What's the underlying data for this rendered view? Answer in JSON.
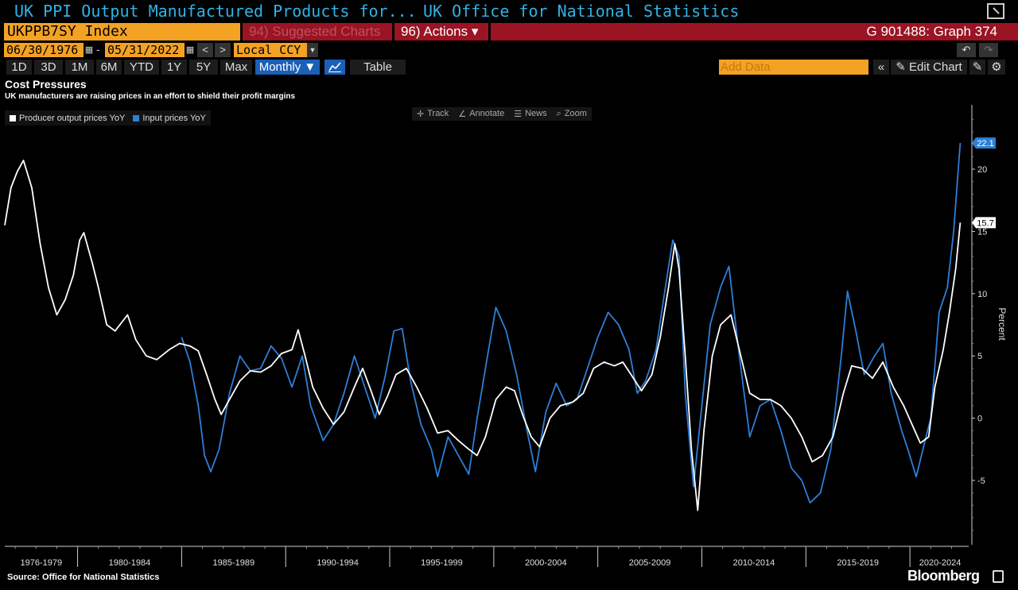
{
  "window": {
    "title_left": "UK PPI Output Manufactured Products for...",
    "title_right": "UK Office for National Statistics"
  },
  "command_bar": {
    "ticker": "UKPPB7SY Index",
    "suggested_charts": "94) Suggested Charts",
    "actions": "96) Actions ▾",
    "graph_id": "G 901488: Graph 374"
  },
  "date_bar": {
    "start_date": "06/30/1976",
    "end_date": "05/31/2022",
    "separator": "-",
    "currency": "Local CCY",
    "prev": "<",
    "next": ">"
  },
  "period_bar": {
    "periods": [
      "1D",
      "3D",
      "1M",
      "6M",
      "YTD",
      "1Y",
      "5Y",
      "Max"
    ],
    "frequency": "Monthly ▼",
    "table": "Table",
    "add_data_placeholder": "Add Data",
    "collapse": "«",
    "edit_chart": "✎ Edit Chart"
  },
  "chart_header": {
    "title": "Cost Pressures",
    "subtitle": "UK manufacturers are raising prices in an effort to shield their profit margins"
  },
  "legend": [
    {
      "label": "Producer output prices YoY",
      "color": "#ffffff"
    },
    {
      "label": "Input prices YoY",
      "color": "#2d7fd6"
    }
  ],
  "tools": [
    {
      "icon": "✛",
      "label": "Track"
    },
    {
      "icon": "∠",
      "label": "Annotate"
    },
    {
      "icon": "☰",
      "label": "News"
    },
    {
      "icon": "⌕",
      "label": "Zoom"
    }
  ],
  "footer": {
    "source": "Source: Office for National Statistics",
    "brand": "Bloomberg"
  },
  "chart_data": {
    "type": "line",
    "title": "Cost Pressures",
    "subtitle": "UK manufacturers are raising prices in an effort to shield their profit margins",
    "ylabel": "Percent",
    "ylim": [
      -10,
      25
    ],
    "xlim": [
      1976.5,
      2022.9
    ],
    "yticks": [
      -5,
      0,
      5,
      10,
      15,
      20
    ],
    "x_categories": [
      "1976-1979",
      "1980-1984",
      "1985-1989",
      "1990-1994",
      "1995-1999",
      "2000-2004",
      "2005-2009",
      "2010-2014",
      "2015-2019",
      "2020-2024"
    ],
    "legend_position": "top-left",
    "last_value_labels": [
      {
        "series": "Input prices YoY",
        "value": "22.1"
      },
      {
        "series": "Producer output prices YoY",
        "value": "15.7"
      }
    ],
    "series": [
      {
        "name": "Producer output prices YoY",
        "color": "#ffffff",
        "points": [
          [
            1976.5,
            15.5
          ],
          [
            1976.8,
            18.5
          ],
          [
            1977.1,
            19.8
          ],
          [
            1977.4,
            20.7
          ],
          [
            1977.8,
            18.5
          ],
          [
            1978.2,
            14
          ],
          [
            1978.6,
            10.5
          ],
          [
            1979.0,
            8.3
          ],
          [
            1979.4,
            9.5
          ],
          [
            1979.8,
            11.5
          ],
          [
            1980.1,
            14.3
          ],
          [
            1980.3,
            14.9
          ],
          [
            1980.7,
            12.5
          ],
          [
            1981.0,
            10.5
          ],
          [
            1981.4,
            7.5
          ],
          [
            1981.8,
            7.0
          ],
          [
            1982.4,
            8.3
          ],
          [
            1982.8,
            6.3
          ],
          [
            1983.3,
            5.0
          ],
          [
            1983.8,
            4.7
          ],
          [
            1984.4,
            5.5
          ],
          [
            1984.9,
            6.0
          ],
          [
            1985.4,
            5.8
          ],
          [
            1985.8,
            5.4
          ],
          [
            1986.2,
            3.5
          ],
          [
            1986.6,
            1.5
          ],
          [
            1986.9,
            0.3
          ],
          [
            1987.3,
            1.5
          ],
          [
            1987.8,
            3.0
          ],
          [
            1988.3,
            3.8
          ],
          [
            1988.8,
            3.7
          ],
          [
            1989.3,
            4.2
          ],
          [
            1989.8,
            5.2
          ],
          [
            1990.3,
            5.5
          ],
          [
            1990.6,
            7.1
          ],
          [
            1990.9,
            5.2
          ],
          [
            1991.3,
            2.5
          ],
          [
            1991.8,
            0.8
          ],
          [
            1992.3,
            -0.5
          ],
          [
            1992.8,
            0.5
          ],
          [
            1993.3,
            2.5
          ],
          [
            1993.7,
            4.0
          ],
          [
            1994.1,
            2.2
          ],
          [
            1994.5,
            0.3
          ],
          [
            1994.9,
            1.8
          ],
          [
            1995.3,
            3.5
          ],
          [
            1995.8,
            4.0
          ],
          [
            1996.3,
            2.5
          ],
          [
            1996.8,
            0.8
          ],
          [
            1997.3,
            -1.2
          ],
          [
            1997.8,
            -1.0
          ],
          [
            1998.3,
            -1.8
          ],
          [
            1998.8,
            -2.5
          ],
          [
            1999.2,
            -3.0
          ],
          [
            1999.6,
            -1.5
          ],
          [
            2000.1,
            1.5
          ],
          [
            2000.6,
            2.5
          ],
          [
            2001.0,
            2.2
          ],
          [
            2001.4,
            0.2
          ],
          [
            2001.8,
            -1.5
          ],
          [
            2002.2,
            -2.3
          ],
          [
            2002.7,
            0.0
          ],
          [
            2003.2,
            1.0
          ],
          [
            2003.8,
            1.3
          ],
          [
            2004.3,
            2.0
          ],
          [
            2004.8,
            4.0
          ],
          [
            2005.3,
            4.5
          ],
          [
            2005.8,
            4.2
          ],
          [
            2006.2,
            4.5
          ],
          [
            2006.6,
            3.5
          ],
          [
            2007.1,
            2.2
          ],
          [
            2007.6,
            3.5
          ],
          [
            2008.0,
            6.5
          ],
          [
            2008.4,
            10.5
          ],
          [
            2008.7,
            14.0
          ],
          [
            2008.9,
            12.0
          ],
          [
            2009.2,
            5.0
          ],
          [
            2009.5,
            -2.5
          ],
          [
            2009.8,
            -7.4
          ],
          [
            2010.1,
            -1.0
          ],
          [
            2010.5,
            5.0
          ],
          [
            2010.9,
            7.5
          ],
          [
            2011.4,
            8.3
          ],
          [
            2011.8,
            5.5
          ],
          [
            2012.3,
            2.0
          ],
          [
            2012.8,
            1.5
          ],
          [
            2013.3,
            1.5
          ],
          [
            2013.8,
            1.0
          ],
          [
            2014.3,
            0.0
          ],
          [
            2014.8,
            -1.5
          ],
          [
            2015.3,
            -3.5
          ],
          [
            2015.8,
            -3.0
          ],
          [
            2016.3,
            -1.5
          ],
          [
            2016.8,
            2.0
          ],
          [
            2017.2,
            4.2
          ],
          [
            2017.7,
            4.0
          ],
          [
            2018.2,
            3.2
          ],
          [
            2018.7,
            4.5
          ],
          [
            2019.2,
            2.5
          ],
          [
            2019.7,
            1.0
          ],
          [
            2020.1,
            -0.5
          ],
          [
            2020.5,
            -2.0
          ],
          [
            2020.9,
            -1.5
          ],
          [
            2021.2,
            2.5
          ],
          [
            2021.6,
            5.5
          ],
          [
            2021.9,
            8.5
          ],
          [
            2022.2,
            12.0
          ],
          [
            2022.42,
            15.7
          ]
        ]
      },
      {
        "name": "Input prices YoY",
        "color": "#2d7fd6",
        "points": [
          [
            1985.0,
            6.5
          ],
          [
            1985.4,
            4.5
          ],
          [
            1985.8,
            1.0
          ],
          [
            1986.1,
            -3.0
          ],
          [
            1986.4,
            -4.3
          ],
          [
            1986.8,
            -2.5
          ],
          [
            1987.3,
            2.0
          ],
          [
            1987.8,
            5.0
          ],
          [
            1988.3,
            3.8
          ],
          [
            1988.8,
            4.0
          ],
          [
            1989.3,
            5.8
          ],
          [
            1989.8,
            4.8
          ],
          [
            1990.3,
            2.5
          ],
          [
            1990.8,
            5.0
          ],
          [
            1991.2,
            1.0
          ],
          [
            1991.8,
            -1.8
          ],
          [
            1992.3,
            -0.5
          ],
          [
            1992.8,
            2.0
          ],
          [
            1993.3,
            5.0
          ],
          [
            1993.8,
            2.5
          ],
          [
            1994.3,
            0.0
          ],
          [
            1994.8,
            3.5
          ],
          [
            1995.2,
            7.0
          ],
          [
            1995.6,
            7.2
          ],
          [
            1996.0,
            3.0
          ],
          [
            1996.5,
            -0.5
          ],
          [
            1997.0,
            -2.5
          ],
          [
            1997.3,
            -4.7
          ],
          [
            1997.8,
            -1.5
          ],
          [
            1998.3,
            -3.0
          ],
          [
            1998.8,
            -4.5
          ],
          [
            1999.2,
            0.0
          ],
          [
            1999.7,
            5.0
          ],
          [
            2000.1,
            8.9
          ],
          [
            2000.6,
            7.0
          ],
          [
            2001.1,
            3.5
          ],
          [
            2001.6,
            -1.0
          ],
          [
            2002.0,
            -4.3
          ],
          [
            2002.5,
            0.5
          ],
          [
            2003.0,
            2.8
          ],
          [
            2003.5,
            1.0
          ],
          [
            2004.0,
            1.5
          ],
          [
            2004.5,
            4.0
          ],
          [
            2005.0,
            6.5
          ],
          [
            2005.5,
            8.5
          ],
          [
            2006.0,
            7.5
          ],
          [
            2006.5,
            5.5
          ],
          [
            2006.9,
            2.0
          ],
          [
            2007.3,
            3.0
          ],
          [
            2007.8,
            5.5
          ],
          [
            2008.2,
            10.0
          ],
          [
            2008.6,
            14.3
          ],
          [
            2008.9,
            13.0
          ],
          [
            2009.2,
            2.0
          ],
          [
            2009.6,
            -5.5
          ],
          [
            2010.0,
            1.0
          ],
          [
            2010.4,
            7.5
          ],
          [
            2010.9,
            10.5
          ],
          [
            2011.3,
            12.2
          ],
          [
            2011.8,
            5.0
          ],
          [
            2012.3,
            -1.5
          ],
          [
            2012.8,
            1.0
          ],
          [
            2013.3,
            1.5
          ],
          [
            2013.8,
            -1.0
          ],
          [
            2014.3,
            -4.0
          ],
          [
            2014.8,
            -5.0
          ],
          [
            2015.2,
            -6.8
          ],
          [
            2015.7,
            -6.0
          ],
          [
            2016.2,
            -2.5
          ],
          [
            2016.7,
            5.0
          ],
          [
            2017.0,
            10.2
          ],
          [
            2017.4,
            7.0
          ],
          [
            2017.8,
            3.5
          ],
          [
            2018.3,
            5.0
          ],
          [
            2018.7,
            6.0
          ],
          [
            2019.1,
            2.0
          ],
          [
            2019.6,
            -1.0
          ],
          [
            2019.9,
            -2.5
          ],
          [
            2020.3,
            -4.7
          ],
          [
            2020.7,
            -2.0
          ],
          [
            2021.0,
            0.0
          ],
          [
            2021.4,
            8.5
          ],
          [
            2021.8,
            10.5
          ],
          [
            2022.1,
            15.0
          ],
          [
            2022.3,
            19.5
          ],
          [
            2022.42,
            22.1
          ]
        ]
      }
    ]
  }
}
